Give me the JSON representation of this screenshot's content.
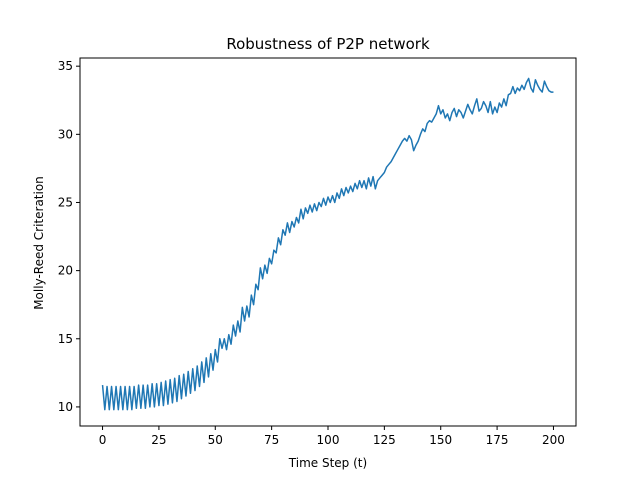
{
  "chart_data": {
    "type": "line",
    "title": "Robustness of P2P network",
    "xlabel": "Time Step (t)",
    "ylabel": "Molly-Reed Criteration",
    "xlim": [
      -10,
      210
    ],
    "ylim": [
      8.6,
      35.6
    ],
    "x_ticks": [
      0,
      25,
      50,
      75,
      100,
      125,
      150,
      175,
      200
    ],
    "y_ticks": [
      10,
      15,
      20,
      25,
      30,
      35
    ],
    "grid": false,
    "legend": "none",
    "series": [
      {
        "color": "#1f77b4",
        "x": [
          0,
          1,
          2,
          3,
          4,
          5,
          6,
          7,
          8,
          9,
          10,
          11,
          12,
          13,
          14,
          15,
          16,
          17,
          18,
          19,
          20,
          21,
          22,
          23,
          24,
          25,
          26,
          27,
          28,
          29,
          30,
          31,
          32,
          33,
          34,
          35,
          36,
          37,
          38,
          39,
          40,
          41,
          42,
          43,
          44,
          45,
          46,
          47,
          48,
          49,
          50,
          51,
          52,
          53,
          54,
          55,
          56,
          57,
          58,
          59,
          60,
          61,
          62,
          63,
          64,
          65,
          66,
          67,
          68,
          69,
          70,
          71,
          72,
          73,
          74,
          75,
          76,
          77,
          78,
          79,
          80,
          81,
          82,
          83,
          84,
          85,
          86,
          87,
          88,
          89,
          90,
          91,
          92,
          93,
          94,
          95,
          96,
          97,
          98,
          99,
          100,
          101,
          102,
          103,
          104,
          105,
          106,
          107,
          108,
          109,
          110,
          111,
          112,
          113,
          114,
          115,
          116,
          117,
          118,
          119,
          120,
          121,
          122,
          123,
          124,
          125,
          126,
          127,
          128,
          129,
          130,
          131,
          132,
          133,
          134,
          135,
          136,
          137,
          138,
          139,
          140,
          141,
          142,
          143,
          144,
          145,
          146,
          147,
          148,
          149,
          150,
          151,
          152,
          153,
          154,
          155,
          156,
          157,
          158,
          159,
          160,
          161,
          162,
          163,
          164,
          165,
          166,
          167,
          168,
          169,
          170,
          171,
          172,
          173,
          174,
          175,
          176,
          177,
          178,
          179,
          180,
          181,
          182,
          183,
          184,
          185,
          186,
          187,
          188,
          189,
          190,
          191,
          192,
          193,
          194,
          195,
          196,
          197,
          198,
          199,
          200
        ],
        "y": [
          11.6,
          9.8,
          11.5,
          9.8,
          11.5,
          9.8,
          11.5,
          9.8,
          11.5,
          9.8,
          11.5,
          9.8,
          11.5,
          9.8,
          11.5,
          9.9,
          11.6,
          9.9,
          11.6,
          9.9,
          11.6,
          10.0,
          11.7,
          10.0,
          11.7,
          10.1,
          11.8,
          10.1,
          11.9,
          10.2,
          12.0,
          10.3,
          12.1,
          10.4,
          12.3,
          10.6,
          12.4,
          10.8,
          12.6,
          11.0,
          12.8,
          11.2,
          13.0,
          11.5,
          13.3,
          11.8,
          13.6,
          12.2,
          13.9,
          12.7,
          14.2,
          13.3,
          15.0,
          14.3,
          15.0,
          14.2,
          15.3,
          14.6,
          16.0,
          15.2,
          16.3,
          15.5,
          17.3,
          16.3,
          17.4,
          16.6,
          18.2,
          17.5,
          19.0,
          18.6,
          20.2,
          19.4,
          20.4,
          19.8,
          20.9,
          20.5,
          21.5,
          21.3,
          22.4,
          21.9,
          23.0,
          22.6,
          23.5,
          22.8,
          23.6,
          23.2,
          23.9,
          23.5,
          24.5,
          23.8,
          24.6,
          24.2,
          24.8,
          24.3,
          24.9,
          24.4,
          25.0,
          24.7,
          25.3,
          24.8,
          25.4,
          25.0,
          25.5,
          25.0,
          25.7,
          25.3,
          26.0,
          25.5,
          26.1,
          25.7,
          26.2,
          25.8,
          26.4,
          26.0,
          26.6,
          26.1,
          26.6,
          26.0,
          26.8,
          26.2,
          26.9,
          26.0,
          26.6,
          26.8,
          27.0,
          27.2,
          27.6,
          27.8,
          28.0,
          28.3,
          28.6,
          28.9,
          29.2,
          29.5,
          29.7,
          29.5,
          29.9,
          29.6,
          28.8,
          29.2,
          29.5,
          30.0,
          30.4,
          30.2,
          30.8,
          31.0,
          30.9,
          31.2,
          31.5,
          32.1,
          31.5,
          31.8,
          31.2,
          31.5,
          31.0,
          31.6,
          31.9,
          31.3,
          31.8,
          31.6,
          31.2,
          31.7,
          32.2,
          31.8,
          31.5,
          32.1,
          32.6,
          31.7,
          31.9,
          32.4,
          32.1,
          31.6,
          32.4,
          31.5,
          32.0,
          31.6,
          32.3,
          32.0,
          32.6,
          32.1,
          32.9,
          33.0,
          33.5,
          33.0,
          33.4,
          33.2,
          33.6,
          33.3,
          33.8,
          34.1,
          33.4,
          33.1,
          34.0,
          33.6,
          33.3,
          33.1,
          33.9,
          33.5,
          33.2,
          33.1,
          33.1
        ]
      }
    ]
  }
}
